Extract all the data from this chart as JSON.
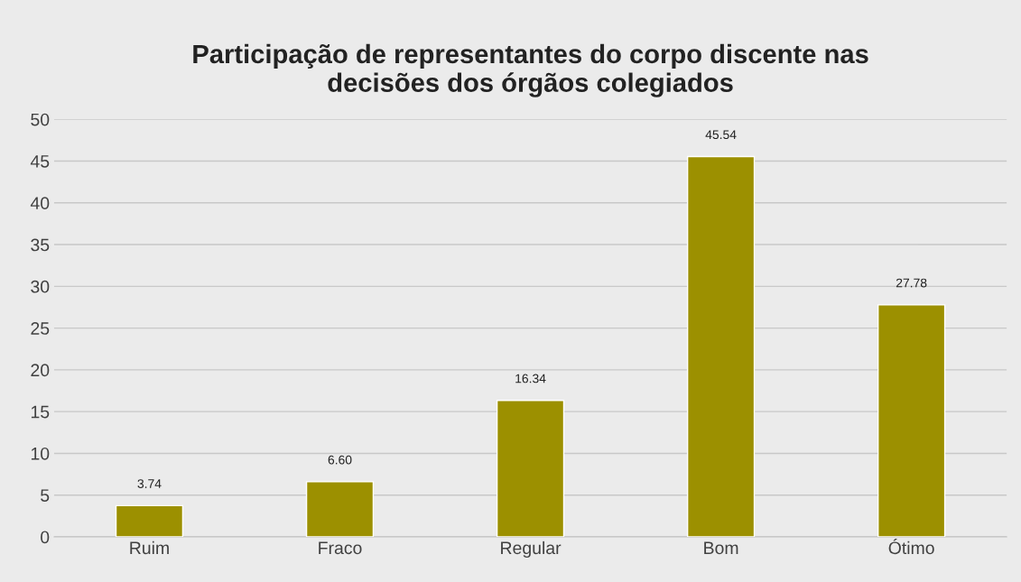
{
  "chart_data": {
    "type": "bar",
    "title": "Participação de representantes do corpo discente nas\ndecisões dos órgãos colegiados",
    "categories": [
      "Ruim",
      "Fraco",
      "Regular",
      "Bom",
      "Ótimo"
    ],
    "values": [
      3.74,
      6.6,
      16.34,
      45.54,
      27.78
    ],
    "value_labels": [
      "3.74",
      "6.60",
      "16.34",
      "45.54",
      "27.78"
    ],
    "color": "#9c9000",
    "ylim": [
      0,
      50
    ],
    "yticks": [
      0,
      5,
      10,
      15,
      20,
      25,
      30,
      35,
      40,
      45,
      50
    ],
    "grid": "y",
    "legend": false
  }
}
